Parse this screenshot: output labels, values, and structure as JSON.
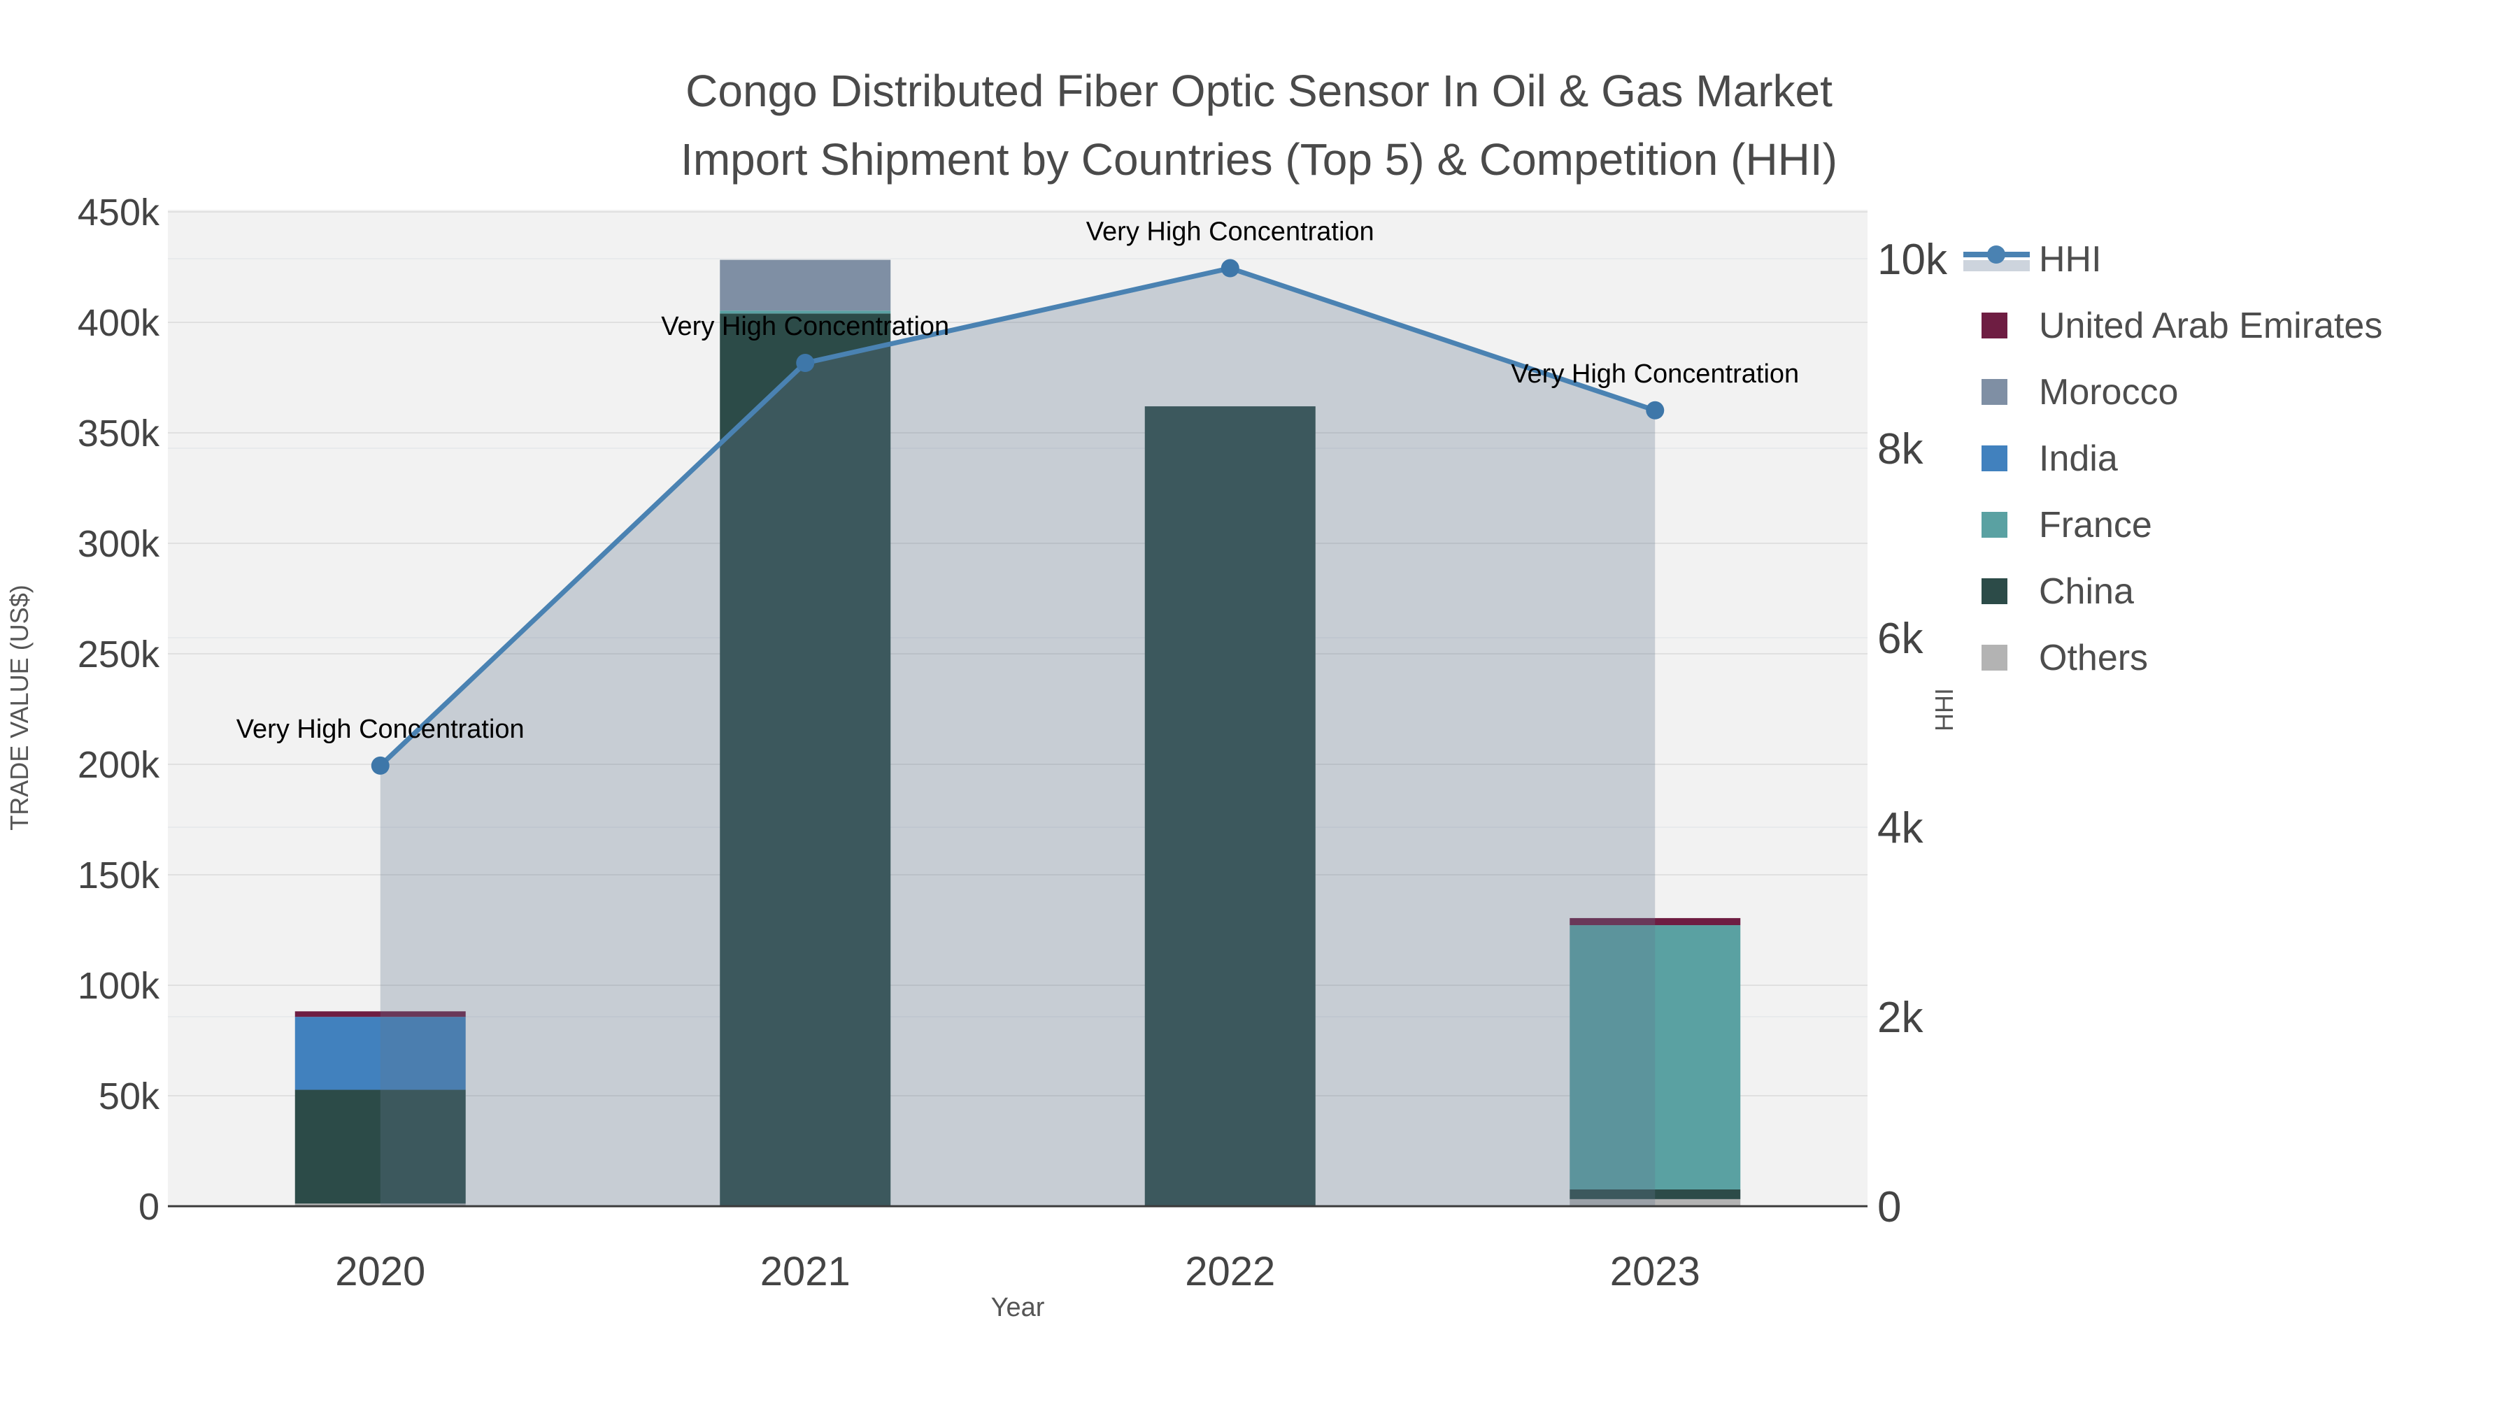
{
  "chart_data": {
    "type": "bar+line",
    "title": "Congo Distributed Fiber Optic Sensor In Oil & Gas Market Import Shipment by Countries (Top 5) & Competition (HHI)",
    "title_line1": "Congo Distributed Fiber Optic Sensor In Oil & Gas Market",
    "title_line2": "Import Shipment by Countries (Top 5) & Competition (HHI)",
    "categories": [
      "2020",
      "2021",
      "2022",
      "2023"
    ],
    "xlabel": "Year",
    "y_left": {
      "label": "TRADE VALUE (US$)",
      "range": [
        0,
        450000
      ],
      "tick_values": [
        0,
        50000,
        100000,
        150000,
        200000,
        250000,
        300000,
        350000,
        400000,
        450000
      ],
      "tick_labels": [
        "0",
        "50k",
        "100k",
        "150k",
        "200k",
        "250k",
        "300k",
        "350k",
        "400k",
        "450k"
      ],
      "grid": true
    },
    "y_right": {
      "label": "HHI",
      "range": [
        0,
        10000
      ],
      "tick_values": [
        0,
        2000,
        4000,
        6000,
        8000,
        10000
      ],
      "tick_labels": [
        "0",
        "2k",
        "4k",
        "6k",
        "8k",
        "10k"
      ],
      "grid": true
    },
    "bar_series": [
      {
        "name": "Others",
        "color": "#b3b3b3",
        "values": [
          1200,
          0,
          0,
          3200
        ]
      },
      {
        "name": "China",
        "color": "#2c4b48",
        "values": [
          51500,
          404000,
          362000,
          4400
        ]
      },
      {
        "name": "France",
        "color": "#5aa1a2",
        "values": [
          0,
          1300,
          0,
          119600
        ]
      },
      {
        "name": "India",
        "color": "#4181be",
        "values": [
          33000,
          0,
          0,
          0
        ]
      },
      {
        "name": "Morocco",
        "color": "#7f8fa4",
        "values": [
          0,
          23000,
          0,
          0
        ]
      },
      {
        "name": "United Arab Emirates",
        "color": "#6e1d42",
        "values": [
          2500,
          0,
          0,
          3200
        ]
      }
    ],
    "line_series": {
      "name": "HHI",
      "color": "#4a82b2",
      "marker_color": "#3e77a9",
      "fill_color": "rgba(100,118,142,0.30)",
      "values": [
        4650,
        8900,
        9900,
        8400
      ],
      "annotations": [
        "Very High Concentration",
        "Very High Concentration",
        "Very High Concentration",
        "Very High Concentration"
      ]
    },
    "legend": {
      "items": [
        {
          "label": "HHI",
          "type": "line",
          "color": "#4a82b2",
          "band": "#cdd4dd"
        },
        {
          "label": "United Arab Emirates",
          "type": "square",
          "color": "#6e1d42"
        },
        {
          "label": "Morocco",
          "type": "square",
          "color": "#7f8fa4"
        },
        {
          "label": "India",
          "type": "square",
          "color": "#4181be"
        },
        {
          "label": "France",
          "type": "square",
          "color": "#5aa1a2"
        },
        {
          "label": "China",
          "type": "square",
          "color": "#2c4b48"
        },
        {
          "label": "Others",
          "type": "square",
          "color": "#b3b3b3"
        }
      ]
    },
    "plot_bg_color": "#f2f2f2",
    "grid_color_left": "#e0e0e0",
    "grid_color_right": "#e8eaec",
    "axis_line_color": "#3b3b3b"
  }
}
